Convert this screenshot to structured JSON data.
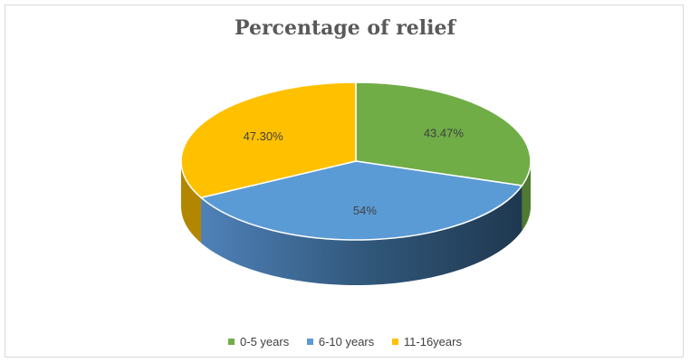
{
  "chart_data": {
    "type": "pie",
    "title": "Percentage of relief",
    "categories": [
      "0-5 years",
      "6-10 years",
      "11-16years"
    ],
    "values": [
      43.47,
      54,
      47.3
    ],
    "labels": [
      "43.47%",
      "54%",
      "47.30%"
    ],
    "colors": [
      "#70ad47",
      "#5b9bd5",
      "#ffc000"
    ],
    "shadeColors": [
      "#4e7a32",
      "#2c4f6f",
      "#b38600"
    ],
    "legend_position": "bottom",
    "style": "3d"
  }
}
